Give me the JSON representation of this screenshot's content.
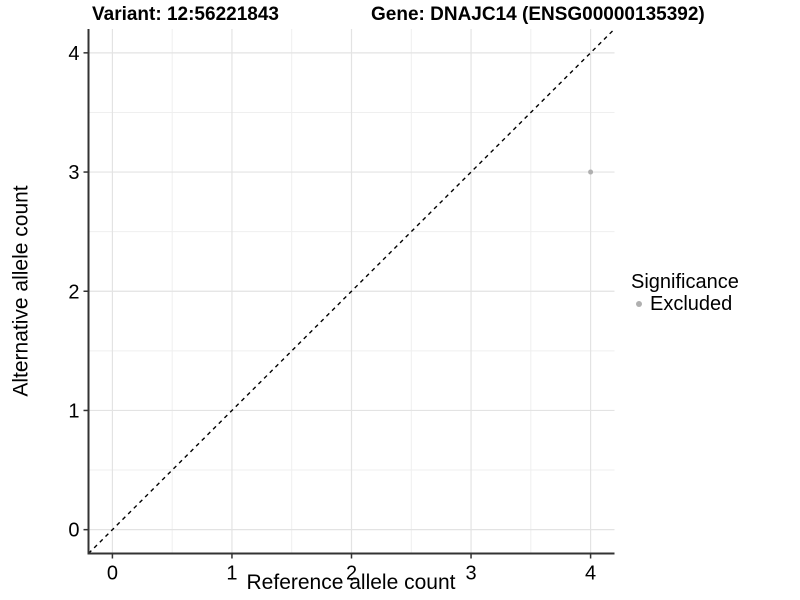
{
  "chart_data": {
    "type": "scatter",
    "titles": {
      "left": "Variant: 12:56221843",
      "right": "Gene: DNAJC14 (ENSG00000135392)"
    },
    "xlabel": "Reference allele count",
    "ylabel": "Alternative allele count",
    "xlim": [
      -0.2,
      4.2
    ],
    "ylim": [
      -0.2,
      4.2
    ],
    "x_ticks": [
      0,
      1,
      2,
      3,
      4
    ],
    "y_ticks": [
      0,
      1,
      2,
      3,
      4
    ],
    "grid": {
      "major": true,
      "minor": true,
      "major_color": "#e3e3e3",
      "minor_color": "#efefef"
    },
    "identity_line": {
      "style": "dashed",
      "color": "#000000",
      "from": [
        -0.2,
        -0.2
      ],
      "to": [
        4.2,
        4.2
      ]
    },
    "series": [
      {
        "name": "Excluded",
        "color": "#b0b0b0",
        "point_radius": 2.5,
        "points": [
          {
            "x": 4,
            "y": 3
          }
        ]
      }
    ],
    "legend": {
      "title": "Significance",
      "position": "right",
      "items": [
        {
          "label": "Excluded",
          "color": "#b0b0b0"
        }
      ]
    },
    "style": {
      "axis_line_color": "#333333",
      "tick_color": "#333333",
      "background": "#ffffff"
    }
  }
}
